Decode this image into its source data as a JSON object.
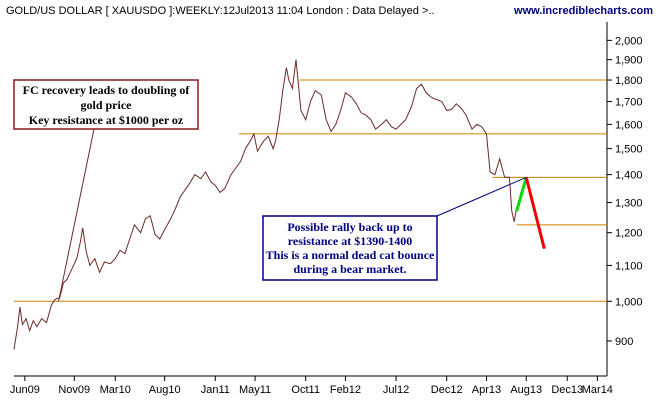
{
  "header": {
    "title": "GOLD/US DOLLAR [ XAUUSDO ]:WEEKLY:12Jul2013 11:04 London : Data Delayed >..",
    "site": "www.incrediblecharts.com"
  },
  "colors": {
    "price_line": "#6b2a2a",
    "resistance": "#d08000",
    "note_border": "#8b1a1a",
    "note_text_brown": "#000000",
    "note_border_navy": "#000080",
    "note_text_navy": "#000080",
    "rally_arrow": "#00dd00",
    "decline_arrow": "#ee0000"
  },
  "chart_data": {
    "type": "line",
    "title": "GOLD/US DOLLAR [ XAUUSDO ]:WEEKLY:12Jul2013 11:04 London : Data Delayed >..",
    "xlabel": "",
    "ylabel": "",
    "scale": "log",
    "ylim": [
      820,
      2100
    ],
    "xlim": [
      2009.33,
      2014.25
    ],
    "grid": false,
    "x_ticks": [
      {
        "label": "Jun09",
        "x": 2009.42
      },
      {
        "label": "Nov09",
        "x": 2009.83
      },
      {
        "label": "Mar10",
        "x": 2010.17
      },
      {
        "label": "Aug10",
        "x": 2010.58
      },
      {
        "label": "Jan11",
        "x": 2011.0
      },
      {
        "label": "May11",
        "x": 2011.33
      },
      {
        "label": "Oct11",
        "x": 2011.75
      },
      {
        "label": "Feb12",
        "x": 2012.08
      },
      {
        "label": "Jul12",
        "x": 2012.5
      },
      {
        "label": "Dec12",
        "x": 2012.92
      },
      {
        "label": "Apr13",
        "x": 2013.25
      },
      {
        "label": "Aug13",
        "x": 2013.58
      },
      {
        "label": "Dec13",
        "x": 2013.92
      },
      {
        "label": "Mar14",
        "x": 2014.17
      }
    ],
    "y_ticks": [
      900,
      1000,
      1100,
      1200,
      1300,
      1400,
      1500,
      1600,
      1700,
      1800,
      1900,
      2000
    ],
    "y_tick_labels": [
      "900",
      "1,000",
      "1,100",
      "1,200",
      "1,300",
      "1,400",
      "1,500",
      "1,600",
      "1,700",
      "1,800",
      "1,900",
      "2,000"
    ],
    "series": [
      {
        "points": [
          [
            2009.33,
            880
          ],
          [
            2009.36,
            935
          ],
          [
            2009.38,
            985
          ],
          [
            2009.4,
            940
          ],
          [
            2009.43,
            955
          ],
          [
            2009.46,
            925
          ],
          [
            2009.49,
            950
          ],
          [
            2009.52,
            935
          ],
          [
            2009.56,
            955
          ],
          [
            2009.6,
            945
          ],
          [
            2009.64,
            990
          ],
          [
            2009.67,
            1005
          ],
          [
            2009.71,
            1010
          ],
          [
            2009.74,
            1050
          ],
          [
            2009.77,
            1060
          ],
          [
            2009.81,
            1090
          ],
          [
            2009.85,
            1120
          ],
          [
            2009.88,
            1170
          ],
          [
            2009.9,
            1215
          ],
          [
            2009.93,
            1140
          ],
          [
            2009.96,
            1100
          ],
          [
            2010.0,
            1120
          ],
          [
            2010.04,
            1080
          ],
          [
            2010.08,
            1110
          ],
          [
            2010.13,
            1105
          ],
          [
            2010.17,
            1120
          ],
          [
            2010.21,
            1145
          ],
          [
            2010.25,
            1135
          ],
          [
            2010.29,
            1180
          ],
          [
            2010.33,
            1225
          ],
          [
            2010.38,
            1200
          ],
          [
            2010.42,
            1245
          ],
          [
            2010.46,
            1255
          ],
          [
            2010.5,
            1195
          ],
          [
            2010.54,
            1180
          ],
          [
            2010.58,
            1210
          ],
          [
            2010.63,
            1245
          ],
          [
            2010.67,
            1280
          ],
          [
            2010.71,
            1320
          ],
          [
            2010.75,
            1345
          ],
          [
            2010.79,
            1370
          ],
          [
            2010.83,
            1400
          ],
          [
            2010.88,
            1385
          ],
          [
            2010.92,
            1410
          ],
          [
            2010.96,
            1375
          ],
          [
            2011.0,
            1360
          ],
          [
            2011.04,
            1335
          ],
          [
            2011.08,
            1350
          ],
          [
            2011.13,
            1400
          ],
          [
            2011.17,
            1425
          ],
          [
            2011.21,
            1450
          ],
          [
            2011.25,
            1500
          ],
          [
            2011.29,
            1530
          ],
          [
            2011.32,
            1560
          ],
          [
            2011.35,
            1490
          ],
          [
            2011.4,
            1530
          ],
          [
            2011.44,
            1550
          ],
          [
            2011.48,
            1500
          ],
          [
            2011.5,
            1530
          ],
          [
            2011.53,
            1620
          ],
          [
            2011.56,
            1750
          ],
          [
            2011.59,
            1860
          ],
          [
            2011.61,
            1800
          ],
          [
            2011.64,
            1760
          ],
          [
            2011.67,
            1900
          ],
          [
            2011.69,
            1780
          ],
          [
            2011.71,
            1660
          ],
          [
            2011.75,
            1620
          ],
          [
            2011.79,
            1700
          ],
          [
            2011.83,
            1750
          ],
          [
            2011.88,
            1730
          ],
          [
            2011.92,
            1620
          ],
          [
            2011.96,
            1570
          ],
          [
            2012.0,
            1600
          ],
          [
            2012.04,
            1660
          ],
          [
            2012.08,
            1740
          ],
          [
            2012.13,
            1720
          ],
          [
            2012.17,
            1690
          ],
          [
            2012.21,
            1650
          ],
          [
            2012.25,
            1640
          ],
          [
            2012.29,
            1620
          ],
          [
            2012.33,
            1580
          ],
          [
            2012.38,
            1600
          ],
          [
            2012.42,
            1620
          ],
          [
            2012.46,
            1590
          ],
          [
            2012.5,
            1580
          ],
          [
            2012.54,
            1600
          ],
          [
            2012.58,
            1620
          ],
          [
            2012.63,
            1680
          ],
          [
            2012.67,
            1760
          ],
          [
            2012.71,
            1780
          ],
          [
            2012.75,
            1740
          ],
          [
            2012.79,
            1720
          ],
          [
            2012.83,
            1710
          ],
          [
            2012.88,
            1700
          ],
          [
            2012.92,
            1660
          ],
          [
            2012.96,
            1665
          ],
          [
            2013.0,
            1690
          ],
          [
            2013.04,
            1670
          ],
          [
            2013.08,
            1640
          ],
          [
            2013.13,
            1580
          ],
          [
            2013.17,
            1600
          ],
          [
            2013.21,
            1590
          ],
          [
            2013.25,
            1560
          ],
          [
            2013.28,
            1410
          ],
          [
            2013.32,
            1400
          ],
          [
            2013.36,
            1460
          ],
          [
            2013.4,
            1390
          ],
          [
            2013.44,
            1390
          ],
          [
            2013.46,
            1270
          ],
          [
            2013.48,
            1235
          ],
          [
            2013.5,
            1285
          ]
        ]
      }
    ],
    "resistance_levels": [
      1800,
      1560,
      1390,
      1225,
      1000
    ],
    "annotations": [
      {
        "text_lines": [
          "FC recovery leads to doubling of",
          "gold price",
          "Key resistance at $1000 per oz"
        ]
      },
      {
        "text_lines": [
          "Possible rally back up to",
          "resistance at $1390-1400",
          "This is a normal dead cat bounce",
          "during a bear market."
        ]
      }
    ],
    "arrows": [
      {
        "name": "rally",
        "from": [
          2013.5,
          1270
        ],
        "to": [
          2013.58,
          1390
        ]
      },
      {
        "name": "decline",
        "from": [
          2013.58,
          1390
        ],
        "to": [
          2013.73,
          1150
        ]
      }
    ]
  }
}
